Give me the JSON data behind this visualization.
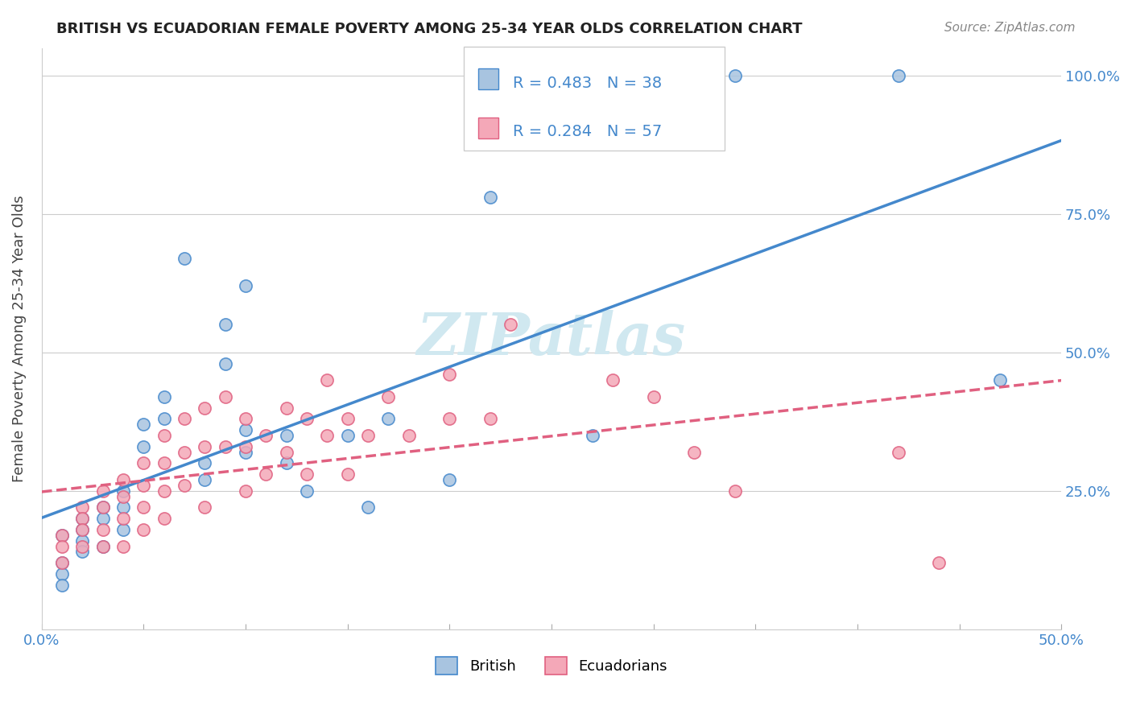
{
  "title": "BRITISH VS ECUADORIAN FEMALE POVERTY AMONG 25-34 YEAR OLDS CORRELATION CHART",
  "source": "Source: ZipAtlas.com",
  "ylabel": "Female Poverty Among 25-34 Year Olds",
  "xlim": [
    0.0,
    0.5
  ],
  "ylim": [
    0.0,
    1.05
  ],
  "xticks": [
    0.0,
    0.05,
    0.1,
    0.15,
    0.2,
    0.25,
    0.3,
    0.35,
    0.4,
    0.45,
    0.5
  ],
  "yticks": [
    0.0,
    0.25,
    0.5,
    0.75,
    1.0
  ],
  "yticklabels_right": [
    "",
    "25.0%",
    "50.0%",
    "75.0%",
    "100.0%"
  ],
  "british_R": 0.483,
  "british_N": 38,
  "ecuadorian_R": 0.284,
  "ecuadorian_N": 57,
  "british_color": "#a8c4e0",
  "british_edge_color": "#4488cc",
  "ecuadorian_color": "#f4a8b8",
  "ecuadorian_edge_color": "#e06080",
  "british_line_color": "#4488cc",
  "ecuadorian_line_color": "#e06080",
  "watermark_text": "ZIPatlas",
  "watermark_color": "#d0e8f0",
  "legend_color": "#4488cc",
  "tick_color": "#4488cc",
  "british_scatter_x": [
    0.01,
    0.01,
    0.01,
    0.01,
    0.02,
    0.02,
    0.02,
    0.02,
    0.03,
    0.03,
    0.03,
    0.04,
    0.04,
    0.04,
    0.05,
    0.05,
    0.06,
    0.06,
    0.07,
    0.08,
    0.08,
    0.09,
    0.09,
    0.1,
    0.1,
    0.1,
    0.12,
    0.12,
    0.13,
    0.15,
    0.16,
    0.17,
    0.2,
    0.22,
    0.27,
    0.34,
    0.42,
    0.47
  ],
  "british_scatter_y": [
    0.17,
    0.12,
    0.1,
    0.08,
    0.2,
    0.18,
    0.16,
    0.14,
    0.22,
    0.2,
    0.15,
    0.25,
    0.22,
    0.18,
    0.37,
    0.33,
    0.42,
    0.38,
    0.67,
    0.3,
    0.27,
    0.55,
    0.48,
    0.62,
    0.36,
    0.32,
    0.35,
    0.3,
    0.25,
    0.35,
    0.22,
    0.38,
    0.27,
    0.78,
    0.35,
    1.0,
    1.0,
    0.45
  ],
  "ecuadorian_scatter_x": [
    0.01,
    0.01,
    0.01,
    0.02,
    0.02,
    0.02,
    0.02,
    0.03,
    0.03,
    0.03,
    0.03,
    0.04,
    0.04,
    0.04,
    0.04,
    0.05,
    0.05,
    0.05,
    0.05,
    0.06,
    0.06,
    0.06,
    0.06,
    0.07,
    0.07,
    0.07,
    0.08,
    0.08,
    0.08,
    0.09,
    0.09,
    0.1,
    0.1,
    0.1,
    0.11,
    0.11,
    0.12,
    0.12,
    0.13,
    0.13,
    0.14,
    0.14,
    0.15,
    0.15,
    0.16,
    0.17,
    0.18,
    0.2,
    0.2,
    0.22,
    0.23,
    0.28,
    0.3,
    0.32,
    0.34,
    0.42,
    0.44
  ],
  "ecuadorian_scatter_y": [
    0.17,
    0.15,
    0.12,
    0.22,
    0.2,
    0.18,
    0.15,
    0.25,
    0.22,
    0.18,
    0.15,
    0.27,
    0.24,
    0.2,
    0.15,
    0.3,
    0.26,
    0.22,
    0.18,
    0.35,
    0.3,
    0.25,
    0.2,
    0.38,
    0.32,
    0.26,
    0.4,
    0.33,
    0.22,
    0.42,
    0.33,
    0.38,
    0.33,
    0.25,
    0.35,
    0.28,
    0.4,
    0.32,
    0.38,
    0.28,
    0.45,
    0.35,
    0.38,
    0.28,
    0.35,
    0.42,
    0.35,
    0.46,
    0.38,
    0.38,
    0.55,
    0.45,
    0.42,
    0.32,
    0.25,
    0.32,
    0.12
  ]
}
